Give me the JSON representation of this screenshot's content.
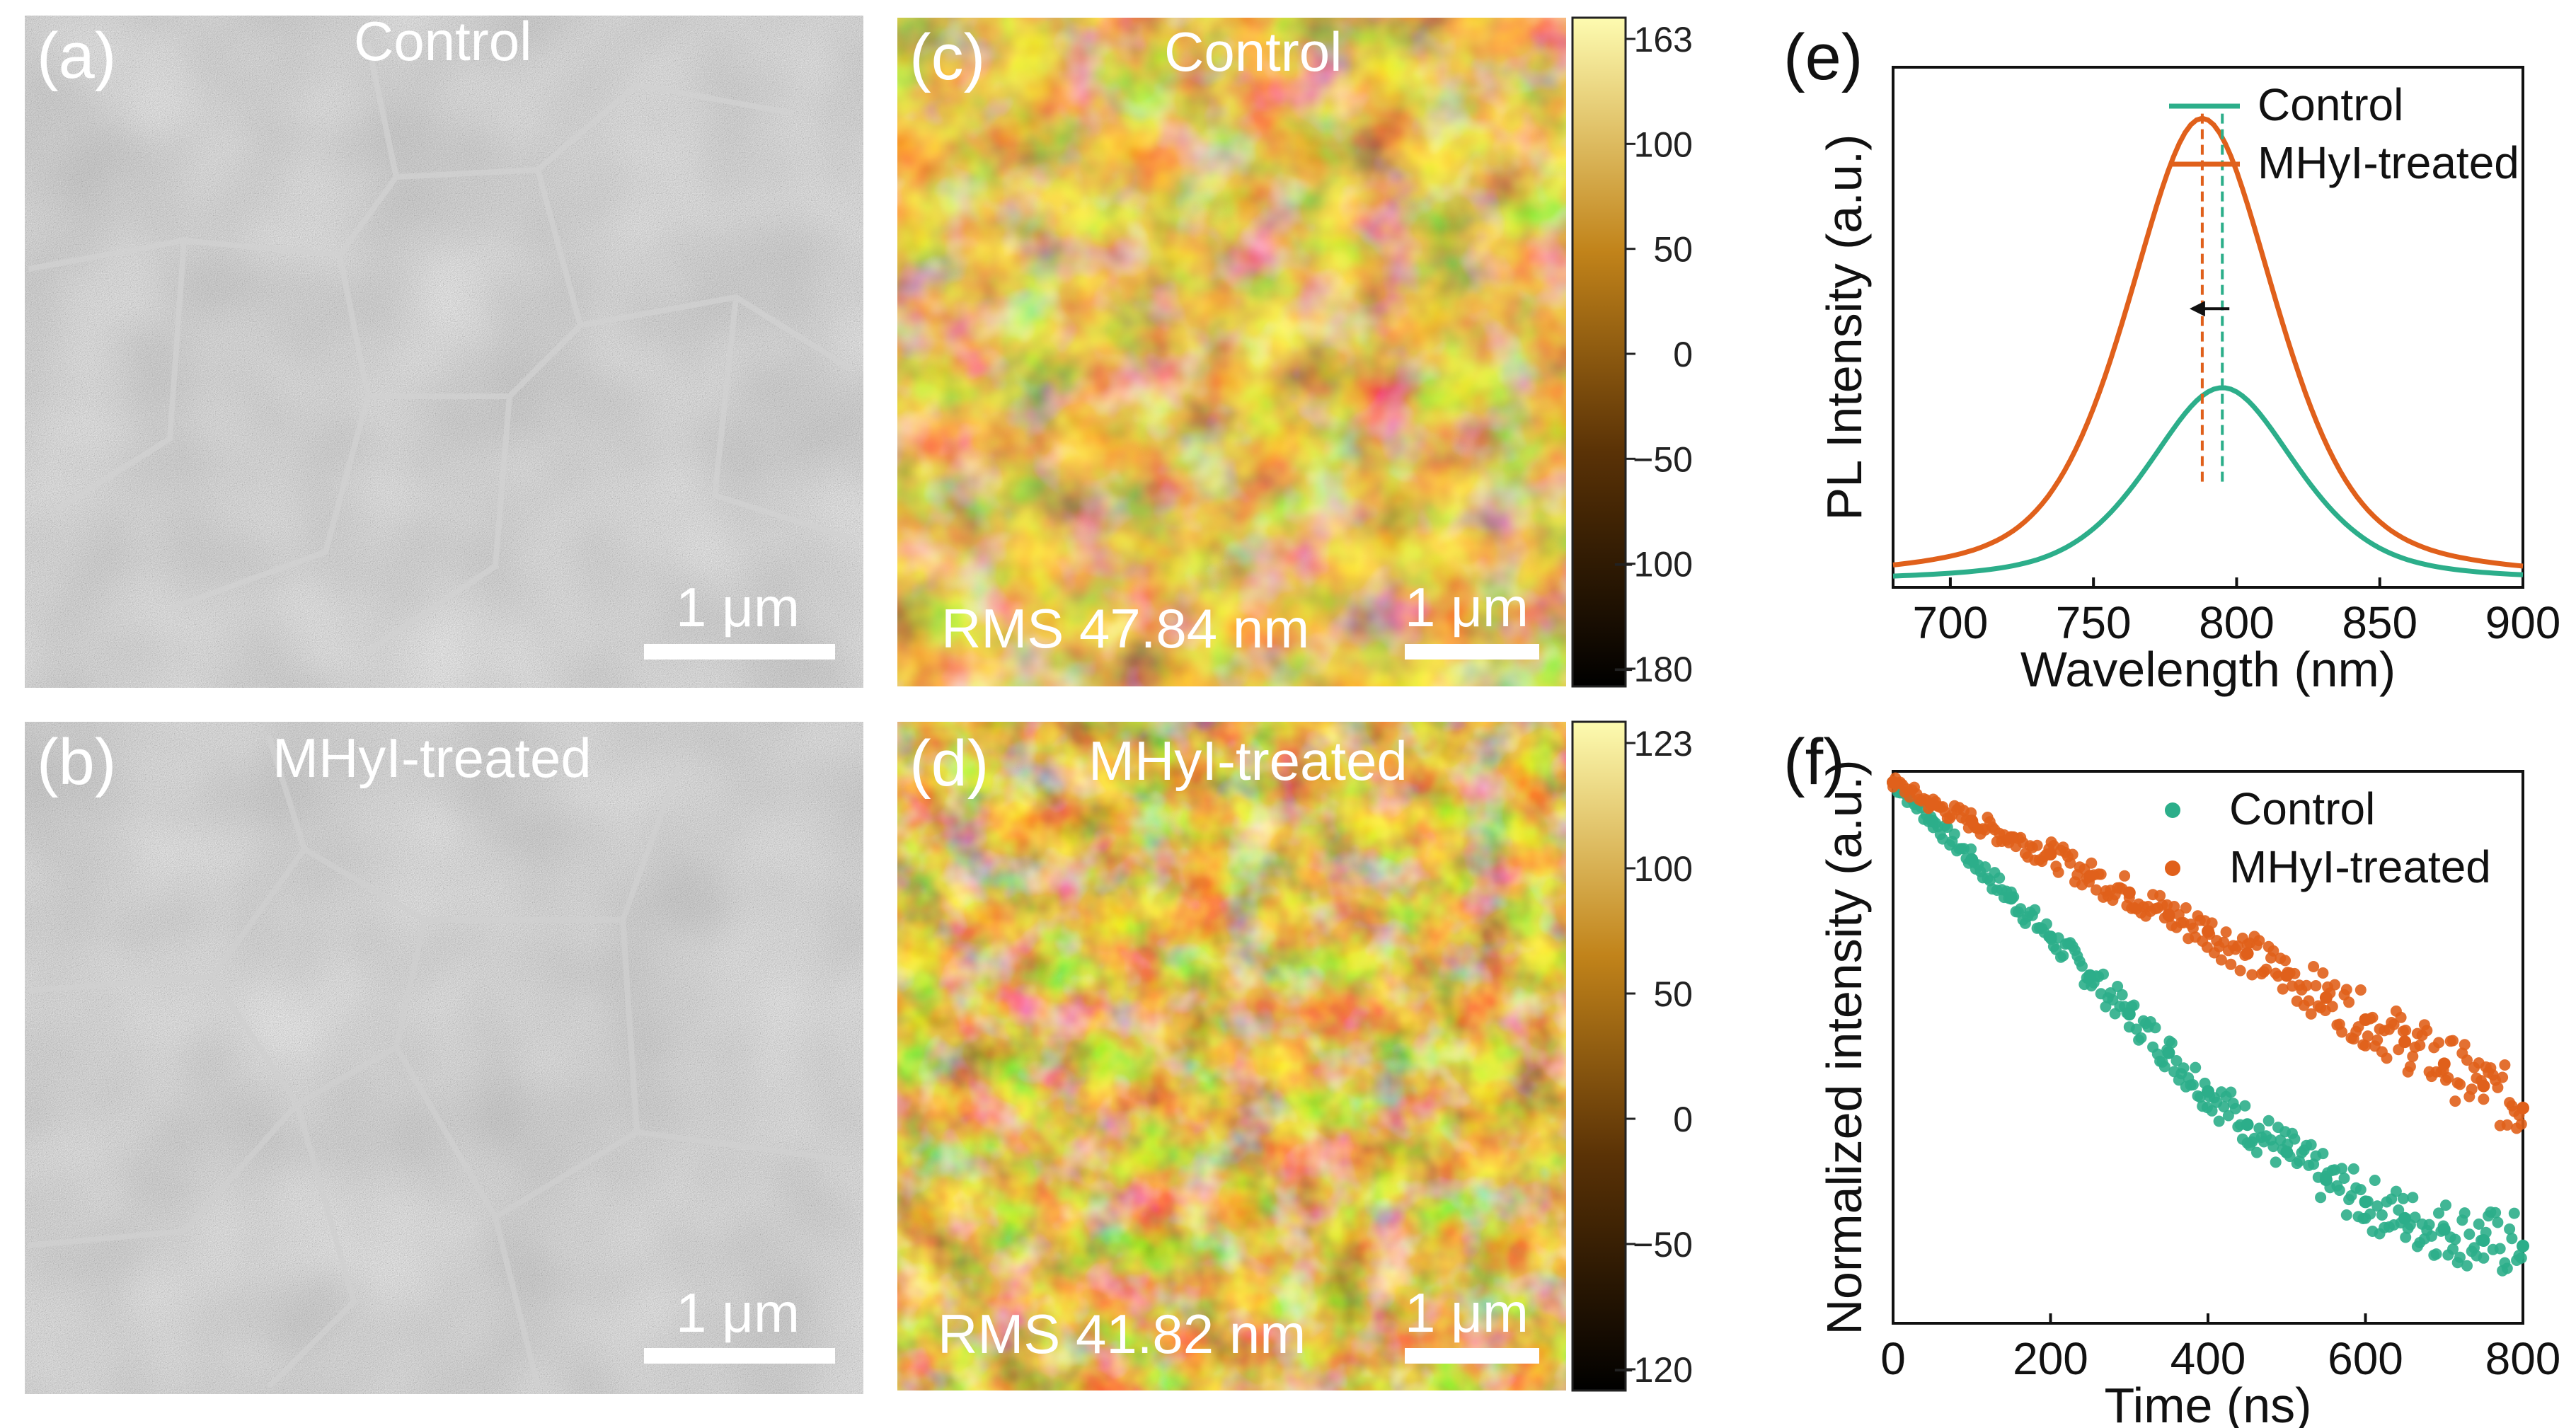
{
  "panels": {
    "a": {
      "letter": "(a)",
      "caption": "Control",
      "scale_bar": "1 μm"
    },
    "b": {
      "letter": "(b)",
      "caption": "MHyI-treated",
      "scale_bar": "1 μm"
    },
    "c": {
      "letter": "(c)",
      "caption": "Control",
      "scale_bar": "1 μm",
      "rms": "RMS 47.84 nm",
      "colorbar_ticks": [
        "163",
        "100",
        "50",
        "0",
        "−50",
        "−100",
        "−180"
      ]
    },
    "d": {
      "letter": "(d)",
      "caption": "MHyI-treated",
      "scale_bar": "1 μm",
      "rms": "RMS 41.82 nm",
      "colorbar_ticks": [
        "123",
        "100",
        "50",
        "0",
        "−50",
        "−120"
      ]
    },
    "e": {
      "letter": "(e)"
    },
    "f": {
      "letter": "(f)"
    }
  },
  "colors": {
    "control": "#2cae8a",
    "treated": "#e0601b",
    "sem_gray": "#8c8c8c",
    "afm_dark": "#3a1f05",
    "afm_mid": "#b77a1c",
    "afm_light": "#f6e6a0"
  },
  "chart_data": [
    {
      "panel": "e",
      "type": "line",
      "xlabel": "Wavelength (nm)",
      "ylabel": "PL Intensity (a.u.)",
      "xlim": [
        680,
        900
      ],
      "xticks": [
        700,
        750,
        800,
        850,
        900
      ],
      "ylim": [
        0,
        1.12
      ],
      "y_ticks_shown": false,
      "legend": "top-right",
      "series": [
        {
          "name": "Control",
          "color": "#2cae8a",
          "peak_nm": 795,
          "peak_intensity": 0.42,
          "fwhm_nm": 62
        },
        {
          "name": "MHyI-treated",
          "color": "#e0601b",
          "peak_nm": 788,
          "peak_intensity": 1.0,
          "fwhm_nm": 62
        }
      ],
      "annotations": [
        {
          "type": "dashed-line",
          "x": 795,
          "color": "#2cae8a"
        },
        {
          "type": "dashed-line",
          "x": 788,
          "color": "#e0601b"
        },
        {
          "type": "arrow",
          "direction": "left",
          "from_x": 795,
          "to_x": 788
        }
      ]
    },
    {
      "panel": "f",
      "type": "scatter",
      "xlabel": "Time (ns)",
      "ylabel": "Normalized intensity (a.u.)",
      "xlim": [
        0,
        800
      ],
      "xticks": [
        0,
        200,
        400,
        600,
        800
      ],
      "ylim": [
        0,
        1.0
      ],
      "y_ticks_shown": false,
      "legend": "top-right",
      "series": [
        {
          "name": "Control",
          "color": "#2cae8a",
          "x": [
            0,
            50,
            100,
            150,
            200,
            250,
            300,
            350,
            400,
            450,
            500,
            550,
            600,
            650,
            700,
            750,
            800
          ],
          "y": [
            0.98,
            0.91,
            0.84,
            0.77,
            0.7,
            0.63,
            0.56,
            0.49,
            0.42,
            0.36,
            0.31,
            0.26,
            0.22,
            0.19,
            0.17,
            0.15,
            0.14
          ]
        },
        {
          "name": "MHyI-treated",
          "color": "#e0601b",
          "x": [
            0,
            50,
            100,
            150,
            200,
            250,
            300,
            350,
            400,
            450,
            500,
            550,
            600,
            650,
            700,
            750,
            800
          ],
          "y": [
            0.98,
            0.94,
            0.91,
            0.88,
            0.85,
            0.81,
            0.78,
            0.74,
            0.71,
            0.67,
            0.63,
            0.59,
            0.55,
            0.51,
            0.47,
            0.43,
            0.39
          ]
        }
      ]
    }
  ]
}
